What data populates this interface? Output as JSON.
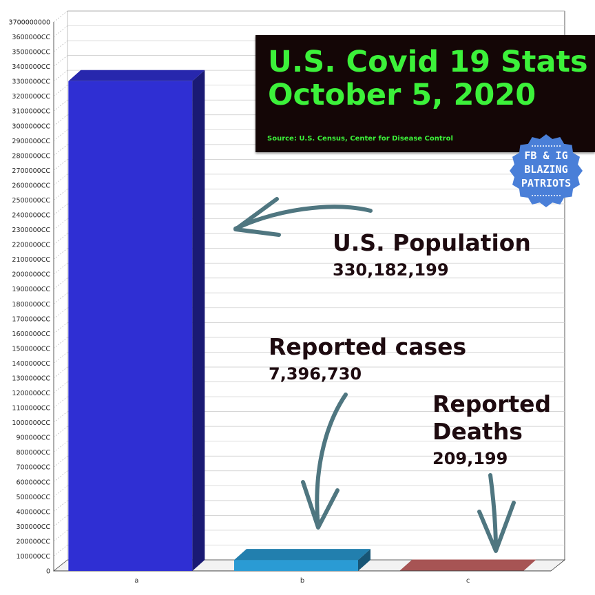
{
  "chart_data": {
    "type": "bar",
    "categories": [
      "a",
      "b",
      "c"
    ],
    "values": [
      330182199,
      7396730,
      209199
    ],
    "series_colors": [
      "#2f2fd3",
      "#2a9bd4",
      "#cc6666"
    ],
    "ylim": [
      0,
      370000000
    ],
    "ytick_step": 10000000,
    "yticks": [
      "0",
      "100000CC",
      "200000CC",
      "300000CC",
      "400000CC",
      "500000CC",
      "600000CC",
      "700000CC",
      "800000CC",
      "900000CC",
      "1000000CC",
      "1100000CC",
      "1200000CC",
      "1300000CC",
      "1400000CC",
      "1500000CC",
      "1600000CC",
      "1700000CC",
      "1800000CC",
      "1900000CC",
      "2000000CC",
      "2100000CC",
      "2200000CC",
      "2300000CC",
      "2400000CC",
      "2500000CC",
      "2600000CC",
      "2700000CC",
      "2800000CC",
      "2900000CC",
      "3000000CC",
      "3100000CC",
      "3200000CC",
      "3300000CC",
      "3400000CC",
      "3500000CC",
      "3600000CC",
      "3700000000"
    ],
    "grid": true,
    "title": "",
    "xlabel": "",
    "ylabel": ""
  },
  "title_box": {
    "line1": "U.S. Covid 19 Stats",
    "line2": "October 5, 2020",
    "source": "Source: U.S. Census, Center for Disease Control"
  },
  "badge": {
    "line1": "FB & IG",
    "line2": "BLAZING",
    "line3": "PATRIOTS",
    "color": "#4a7fd8"
  },
  "annotations": {
    "population": {
      "label": "U.S. Population",
      "value": "330,182,199"
    },
    "cases": {
      "label": "Reported cases",
      "value": "7,396,730"
    },
    "deaths": {
      "label_line1": "Reported",
      "label_line2": "Deaths",
      "value": "209,199"
    },
    "arrow_color": "#4f7680"
  }
}
